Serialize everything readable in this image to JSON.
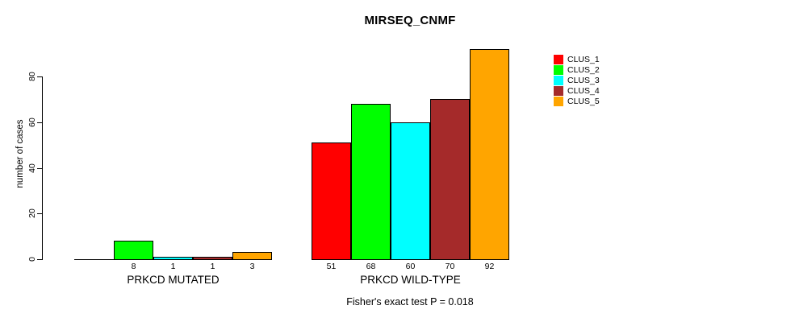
{
  "title": "MIRSEQ_CNMF",
  "y_axis": {
    "label": "number of cases",
    "ticks": [
      0,
      20,
      40,
      60,
      80
    ]
  },
  "footer": "Fisher's exact test P = 0.018",
  "legend": {
    "items": [
      {
        "label": "CLUS_1",
        "color": "#FF0000"
      },
      {
        "label": "CLUS_2",
        "color": "#00FF00"
      },
      {
        "label": "CLUS_3",
        "color": "#00FFFF"
      },
      {
        "label": "CLUS_4",
        "color": "#A52A2A"
      },
      {
        "label": "CLUS_5",
        "color": "#FFA500"
      }
    ]
  },
  "chart_data": {
    "type": "bar",
    "title": "MIRSEQ_CNMF",
    "ylabel": "number of cases",
    "ylim": [
      0,
      92
    ],
    "yticks": [
      0,
      20,
      40,
      60,
      80
    ],
    "grid": false,
    "legend_position": "right",
    "categories": [
      "PRKCD MUTATED",
      "PRKCD WILD-TYPE"
    ],
    "series": [
      {
        "name": "CLUS_1",
        "color": "#FF0000",
        "values": [
          0,
          51
        ]
      },
      {
        "name": "CLUS_2",
        "color": "#00FF00",
        "values": [
          8,
          68
        ]
      },
      {
        "name": "CLUS_3",
        "color": "#00FFFF",
        "values": [
          1,
          60
        ]
      },
      {
        "name": "CLUS_4",
        "color": "#A52A2A",
        "values": [
          1,
          70
        ]
      },
      {
        "name": "CLUS_5",
        "color": "#FFA500",
        "values": [
          3,
          92
        ]
      }
    ],
    "bar_value_labels": "shown under each bar; zero-height bars have no label",
    "annotation": "Fisher's exact test P = 0.018"
  }
}
